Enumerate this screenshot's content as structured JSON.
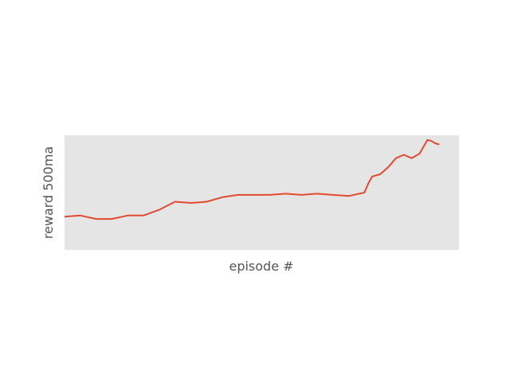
{
  "chart_data": {
    "type": "line",
    "title": "",
    "xlabel": "episode #",
    "ylabel": "reward 500ma",
    "x_ticks_visible": false,
    "y_ticks_visible": false,
    "grid": false,
    "background_color": "#e5e5e5",
    "series": [
      {
        "color": "#e24a33",
        "x": [
          0,
          0.04,
          0.08,
          0.12,
          0.16,
          0.2,
          0.24,
          0.28,
          0.32,
          0.36,
          0.4,
          0.44,
          0.48,
          0.52,
          0.56,
          0.6,
          0.64,
          0.68,
          0.72,
          0.76,
          0.77,
          0.78,
          0.79,
          0.8,
          0.82,
          0.84,
          0.86,
          0.88,
          0.9,
          0.92,
          0.93,
          0.94,
          0.95
        ],
        "y": [
          0.29,
          0.3,
          0.27,
          0.27,
          0.3,
          0.3,
          0.35,
          0.42,
          0.41,
          0.42,
          0.46,
          0.48,
          0.48,
          0.48,
          0.49,
          0.48,
          0.49,
          0.48,
          0.47,
          0.5,
          0.58,
          0.64,
          0.65,
          0.66,
          0.72,
          0.8,
          0.83,
          0.8,
          0.84,
          0.96,
          0.95,
          0.93,
          0.92
        ]
      }
    ]
  }
}
